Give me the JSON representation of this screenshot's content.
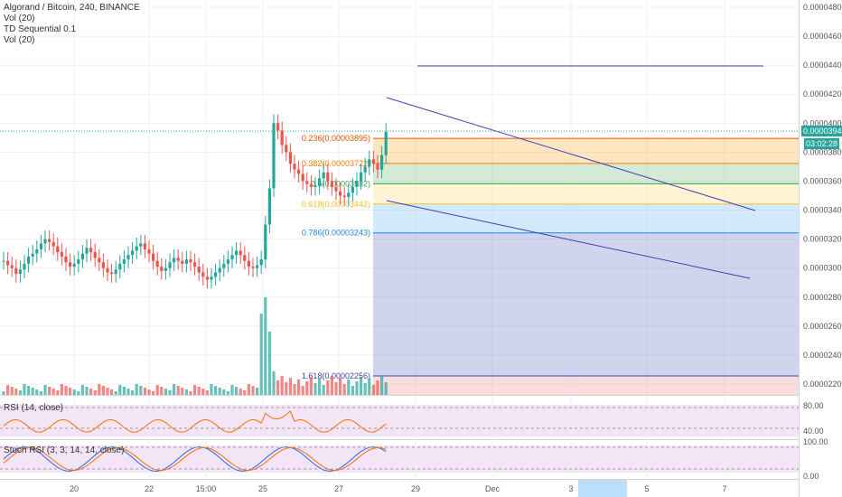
{
  "legend": {
    "symbol": "Algorand / Bitcoin, 240, BINANCE",
    "vol1": "Vol (20)",
    "td": "TD Sequential 0.1",
    "vol2": "Vol (20)"
  },
  "rsi_label": "RSI (14, close)",
  "stoch_label": "Stoch RSI (3, 3, 14, 14, close)",
  "price_tag": "0.00003945",
  "countdown": "03:02:28",
  "chart_data": {
    "type": "candlestick",
    "price_axis": {
      "ticks": [
        "0.00004800",
        "0.00004600",
        "0.00004400",
        "0.00004200",
        "0.00004000",
        "0.00003800",
        "0.00003600",
        "0.00003400",
        "0.00003200",
        "0.00003000",
        "0.00002800",
        "0.00002600",
        "0.00002400",
        "0.00002200"
      ],
      "range": [
        2.12e-05,
        4.9e-05
      ]
    },
    "x_labels": [
      "20",
      "22",
      "15:00",
      "25",
      "27",
      "29",
      "Dec",
      "3",
      "5",
      "7"
    ],
    "fib_levels": [
      {
        "label": "0.236(0.00003895)",
        "value": 3.895e-05,
        "color": "#e65100"
      },
      {
        "label": "0.382(0.00003722)",
        "value": 3.722e-05,
        "color": "#f57c00"
      },
      {
        "label": "0.5(0.00003582)",
        "value": 3.582e-05,
        "color": "#43a047"
      },
      {
        "label": "0.618(0.00003442)",
        "value": 3.442e-05,
        "color": "#fbc02d"
      },
      {
        "label": "0.786(0.00003243)",
        "value": 3.243e-05,
        "color": "#1e88e5"
      },
      {
        "label": "1.618(0.00002256)",
        "value": 2.256e-05,
        "color": "#3949ab"
      }
    ],
    "rsi_levels": [
      "80.00",
      "40.00"
    ],
    "stoch_levels": [
      "100.00",
      "0.00"
    ],
    "last_price": 3.945e-05
  }
}
